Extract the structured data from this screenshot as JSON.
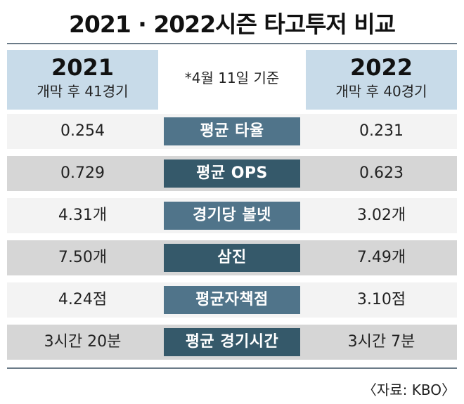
{
  "title": "2021 · 2022시즌 타고투저 비교",
  "header": {
    "left": {
      "year": "2021",
      "games": "개막 후 41경기"
    },
    "right": {
      "year": "2022",
      "games": "개막 후 40경기"
    },
    "note": "*4월 11일 기준"
  },
  "rows": [
    {
      "left": "0.254",
      "label": "평균 타율",
      "right": "0.231"
    },
    {
      "left": "0.729",
      "label": "평균 OPS",
      "right": "0.623"
    },
    {
      "left": "4.31개",
      "label": "경기당 볼넷",
      "right": "3.02개"
    },
    {
      "left": "7.50개",
      "label": "삼진",
      "right": "7.49개"
    },
    {
      "left": "4.24점",
      "label": "평균자책점",
      "right": "3.10점"
    },
    {
      "left": "3시간 20분",
      "label": "평균 경기시간",
      "right": "3시간 7분"
    }
  ],
  "source": "〈자료: KBO〉",
  "colors": {
    "header_bg": "#c8dbe9",
    "label_bg_a": "#50748a",
    "label_bg_b": "#35596a",
    "row_light": "#f3f3f3",
    "row_dark": "#d6d6d6"
  }
}
